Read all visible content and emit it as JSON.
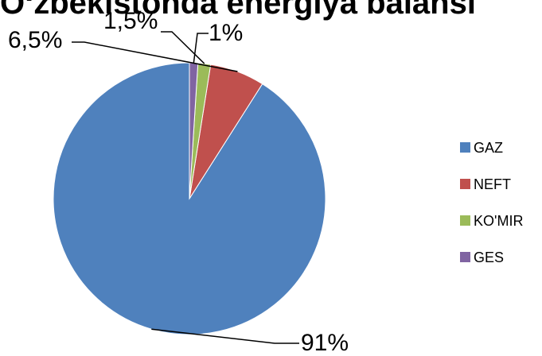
{
  "chart_data": {
    "type": "pie",
    "title": "O‘zbekistonda energiya balansi",
    "categories": [
      "GAZ",
      "NEFT",
      "KO'MIR",
      "GES"
    ],
    "values": [
      91,
      6.5,
      1.5,
      1
    ],
    "data_labels": [
      "91%",
      "6,5%",
      "1,5%",
      "1%"
    ],
    "colors": [
      "#4F81BD",
      "#C0504D",
      "#9BBB59",
      "#8064A2"
    ],
    "legend_placement": "right",
    "start_angle": "12 o'clock",
    "direction": "counterclockwise"
  }
}
